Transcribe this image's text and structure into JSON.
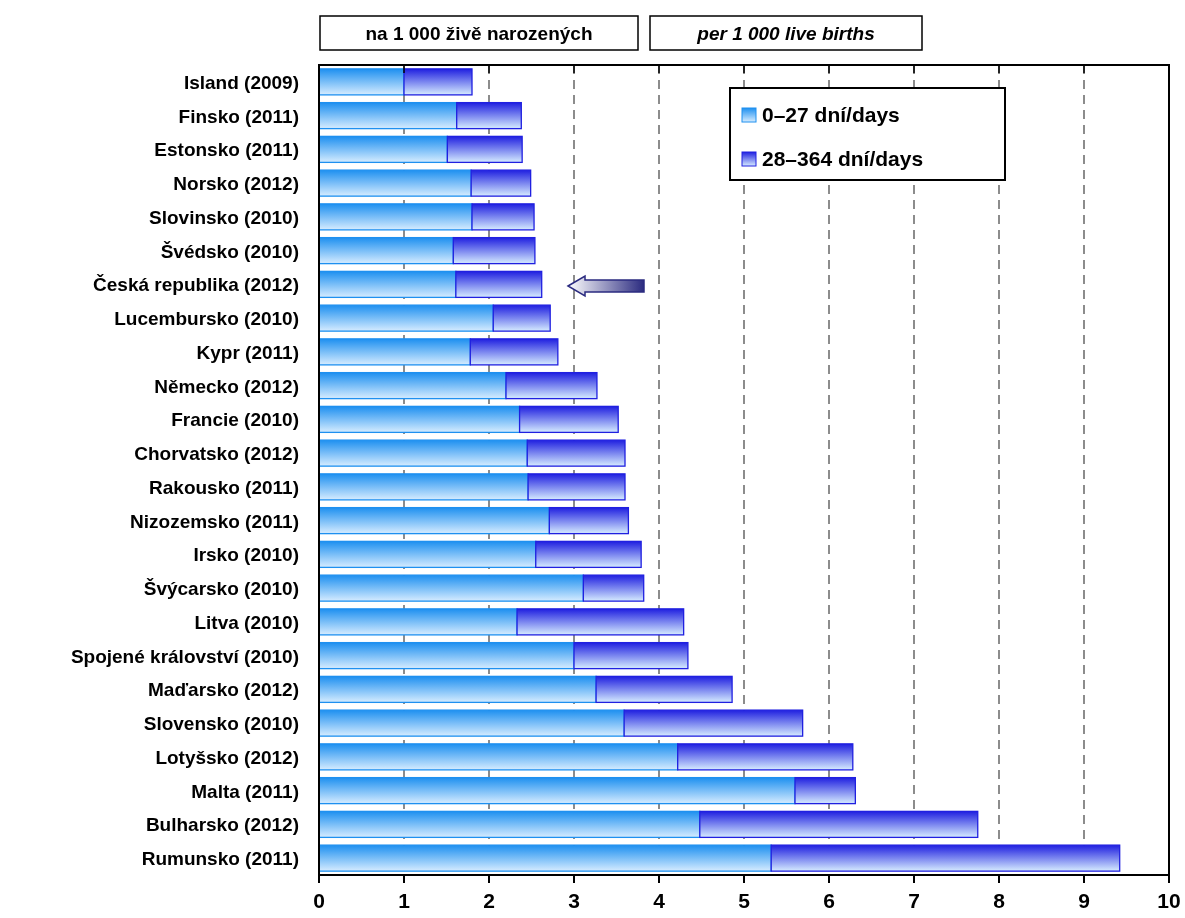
{
  "chart_data": {
    "type": "bar",
    "orientation": "horizontal",
    "stacked": true,
    "categories": [
      "Island (2009)",
      "Finsko (2011)",
      "Estonsko (2011)",
      "Norsko (2012)",
      "Slovinsko (2010)",
      "Švédsko (2010)",
      "Česká republika (2012)",
      "Lucembursko (2010)",
      "Kypr (2011)",
      "Německo (2012)",
      "Francie (2010)",
      "Chorvatsko (2012)",
      "Rakousko (2011)",
      "Nizozemsko (2011)",
      "Irsko (2010)",
      "Švýcarsko (2010)",
      "Litva (2010)",
      "Spojené království (2010)",
      "Maďarsko (2012)",
      "Slovensko (2010)",
      "Lotyšsko (2012)",
      "Malta (2011)",
      "Bulharsko (2012)",
      "Rumunsko (2011)"
    ],
    "series": [
      {
        "name": "0–27 dní/days",
        "color": "#1e90f0",
        "values": [
          1.0,
          1.62,
          1.51,
          1.79,
          1.8,
          1.58,
          1.61,
          2.05,
          1.78,
          2.2,
          2.36,
          2.45,
          2.46,
          2.71,
          2.55,
          3.11,
          2.33,
          3.0,
          3.26,
          3.59,
          4.22,
          5.6,
          4.48,
          5.32
        ]
      },
      {
        "name": "28–364 dní/days",
        "color": "#2020e0",
        "values": [
          0.8,
          0.76,
          0.88,
          0.7,
          0.73,
          0.96,
          1.01,
          0.67,
          1.03,
          1.07,
          1.16,
          1.15,
          1.14,
          0.93,
          1.24,
          0.71,
          1.96,
          1.34,
          1.6,
          2.1,
          2.06,
          0.71,
          3.27,
          4.1
        ]
      }
    ],
    "xlim": [
      0,
      10
    ],
    "xticks": [
      0,
      1,
      2,
      3,
      4,
      5,
      6,
      7,
      8,
      9,
      10
    ],
    "grid": "x",
    "legend": "top right",
    "annotations": [
      "na 1 000 živě narozených",
      "per 1 000 live births"
    ]
  }
}
